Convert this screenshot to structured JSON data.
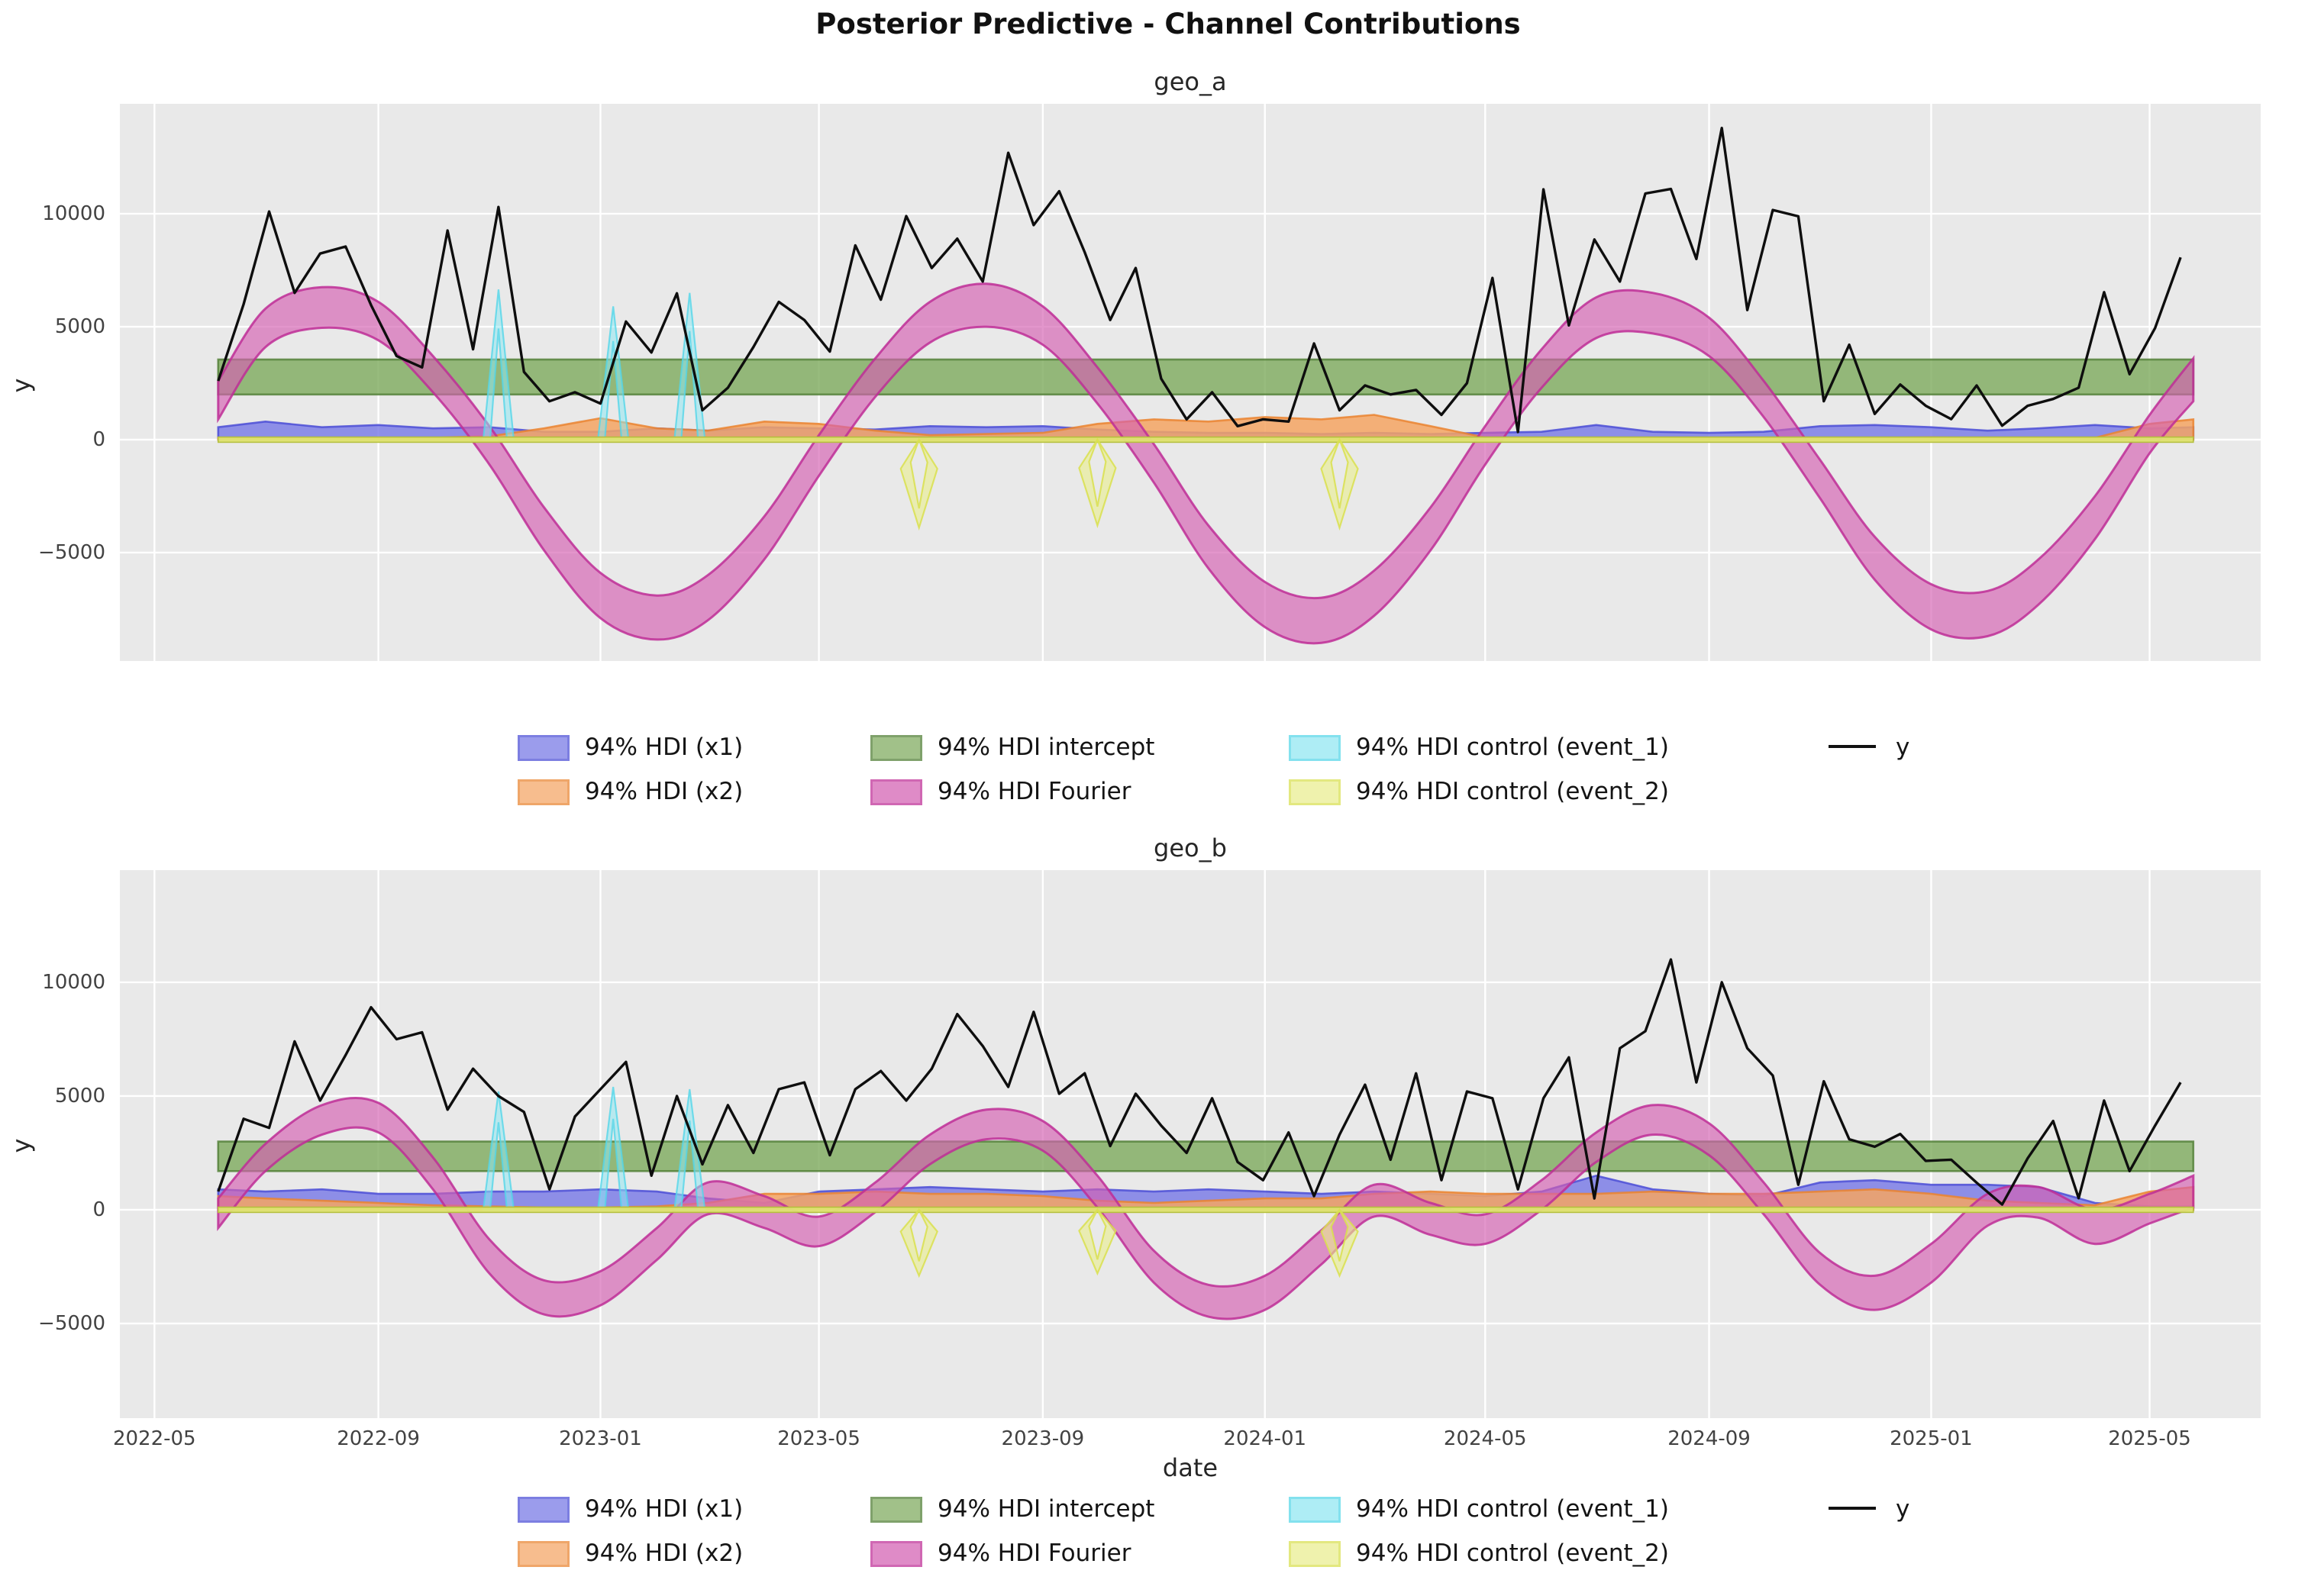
{
  "figure": {
    "suptitle": "Posterior Predictive - Channel Contributions",
    "xlabel": "date",
    "ylabel": "y"
  },
  "colors": {
    "plot_background": "#e9e9e9",
    "grid": "#ffffff",
    "y_line": "#0e0e0e",
    "x1_fill": "#7577e6",
    "x1_edge": "#4b4dd6",
    "x2_fill": "#f4a563",
    "x2_edge": "#ea8430",
    "intercept_fill": "#7daa5c",
    "intercept_edge": "#4f7d33",
    "fourier_fill": "#d45fb2",
    "fourier_edge": "#be2e96",
    "event1_fill": "#8fe7f2",
    "event1_edge": "#54d6e8",
    "event2_fill": "#e9ee8e",
    "event2_edge": "#d9e04e",
    "zero_band_fill": "#dfe573",
    "zero_band_edge": "#b5bf3d"
  },
  "legend": {
    "rows": [
      [
        {
          "key": "x1",
          "label": "94% HDI (x1)",
          "type": "patch"
        },
        {
          "key": "intercept",
          "label": "94% HDI intercept",
          "type": "patch"
        },
        {
          "key": "event1",
          "label": "94% HDI control (event_1)",
          "type": "patch"
        },
        {
          "key": "yline",
          "label": "y",
          "type": "line"
        }
      ],
      [
        {
          "key": "x2",
          "label": "94% HDI (x2)",
          "type": "patch"
        },
        {
          "key": "fourier",
          "label": "94% HDI Fourier",
          "type": "patch"
        },
        {
          "key": "event2",
          "label": "94% HDI control (event_2)",
          "type": "patch"
        }
      ]
    ]
  },
  "chart_data": [
    {
      "type": "line",
      "title": "geo_a",
      "ylabel": "y",
      "ylim": [
        -9800,
        14870
      ],
      "yticks": [
        -5000,
        0,
        5000,
        10000
      ],
      "x_domain": [
        "2022-04-12",
        "2025-07-01"
      ],
      "xticks": [
        "2022-05",
        "2022-09",
        "2023-01",
        "2023-05",
        "2023-09",
        "2024-01",
        "2024-05",
        "2024-09",
        "2025-01",
        "2025-05"
      ],
      "grid": true,
      "intercept_hdi": {
        "lo": 2000,
        "hi": 3550
      },
      "band_dates": [
        "2022-06-05",
        "2022-07-01",
        "2022-08-01",
        "2022-09-01",
        "2022-10-01",
        "2022-11-01",
        "2022-12-01",
        "2023-01-01",
        "2023-02-01",
        "2023-03-01",
        "2023-04-01",
        "2023-05-01",
        "2023-06-01",
        "2023-07-01",
        "2023-08-01",
        "2023-09-01",
        "2023-10-01",
        "2023-11-01",
        "2023-12-01",
        "2024-01-01",
        "2024-02-01",
        "2024-03-01",
        "2024-04-01",
        "2024-05-01",
        "2024-06-01",
        "2024-07-01",
        "2024-08-01",
        "2024-09-01",
        "2024-10-01",
        "2024-11-01",
        "2024-12-01",
        "2025-01-01",
        "2025-02-01",
        "2025-03-01",
        "2025-04-01",
        "2025-05-01",
        "2025-05-25"
      ],
      "fourier_upper": [
        2600,
        5800,
        6750,
        6100,
        3700,
        600,
        -3000,
        -5900,
        -6900,
        -6000,
        -3400,
        200,
        3600,
        6100,
        6900,
        5900,
        3200,
        -200,
        -3800,
        -6300,
        -7000,
        -5800,
        -3000,
        600,
        4000,
        6300,
        6500,
        5400,
        2600,
        -900,
        -4300,
        -6400,
        -6700,
        -5300,
        -2500,
        1100,
        3600
      ],
      "fourier_lower": [
        900,
        4100,
        4950,
        4400,
        2100,
        -1100,
        -4900,
        -7900,
        -8850,
        -8000,
        -5300,
        -1600,
        1900,
        4300,
        5000,
        4200,
        1600,
        -1900,
        -5700,
        -8300,
        -9000,
        -7800,
        -4900,
        -1100,
        2300,
        4500,
        4700,
        3700,
        1000,
        -2600,
        -6200,
        -8400,
        -8700,
        -7300,
        -4400,
        -600,
        1700
      ],
      "x1_upper": [
        550,
        800,
        550,
        650,
        500,
        550,
        350,
        350,
        500,
        400,
        550,
        500,
        450,
        600,
        550,
        600,
        450,
        350,
        300,
        300,
        250,
        300,
        250,
        300,
        350,
        650,
        350,
        300,
        350,
        600,
        650,
        550,
        400,
        500,
        650,
        500,
        550
      ],
      "x2_upper": [
        60,
        60,
        50,
        60,
        80,
        150,
        500,
        950,
        500,
        400,
        800,
        700,
        400,
        200,
        250,
        300,
        700,
        900,
        800,
        1000,
        900,
        1100,
        600,
        100,
        80,
        60,
        60,
        50,
        50,
        60,
        80,
        100,
        80,
        60,
        80,
        700,
        900
      ],
      "event_1": [
        {
          "date": "2022-11-06",
          "hdi_upper": 6650
        },
        {
          "date": "2023-01-08",
          "hdi_upper": 5900
        },
        {
          "date": "2023-02-19",
          "hdi_upper": 6500
        }
      ],
      "event_2": [
        {
          "date": "2023-06-25",
          "hdi_lower": -3900
        },
        {
          "date": "2023-10-01",
          "hdi_lower": -3800
        },
        {
          "date": "2024-02-11",
          "hdi_lower": -3900
        }
      ],
      "y_line": {
        "start": "2022-06-05",
        "step_days": 14,
        "values": [
          2600,
          6000,
          10100,
          6500,
          8240,
          8550,
          5960,
          3700,
          3200,
          9260,
          4000,
          10300,
          3000,
          1700,
          2100,
          1600,
          5230,
          3860,
          6480,
          1300,
          2300,
          4100,
          6100,
          5300,
          3900,
          8600,
          6200,
          9900,
          7600,
          8900,
          7000,
          12700,
          9500,
          11000,
          8300,
          5300,
          7600,
          2700,
          900,
          2100,
          600,
          900,
          800,
          4260,
          1300,
          2400,
          2000,
          2200,
          1100,
          2500,
          7160,
          340,
          11080,
          5060,
          8860,
          7000,
          10900,
          11100,
          8000,
          13800,
          5740,
          10170,
          9890,
          1700,
          4200,
          1140,
          2440,
          1500,
          910,
          2400,
          620,
          1500,
          1800,
          2300,
          6530,
          2900,
          4940,
          8070
        ]
      }
    },
    {
      "type": "line",
      "title": "geo_b",
      "ylabel": "y",
      "ylim": [
        -9160,
        14930
      ],
      "yticks": [
        -5000,
        0,
        5000,
        10000
      ],
      "x_domain": [
        "2022-04-12",
        "2025-07-01"
      ],
      "xticks": [
        "2022-05",
        "2022-09",
        "2023-01",
        "2023-05",
        "2023-09",
        "2024-01",
        "2024-05",
        "2024-09",
        "2025-01",
        "2025-05"
      ],
      "grid": true,
      "intercept_hdi": {
        "lo": 1700,
        "hi": 3000
      },
      "band_dates": [
        "2022-06-05",
        "2022-07-01",
        "2022-08-01",
        "2022-09-01",
        "2022-10-01",
        "2022-11-01",
        "2022-12-01",
        "2023-01-01",
        "2023-02-01",
        "2023-03-01",
        "2023-04-01",
        "2023-05-01",
        "2023-06-01",
        "2023-07-01",
        "2023-08-01",
        "2023-09-01",
        "2023-10-01",
        "2023-11-01",
        "2023-12-01",
        "2024-01-01",
        "2024-02-01",
        "2024-03-01",
        "2024-04-01",
        "2024-05-01",
        "2024-06-01",
        "2024-07-01",
        "2024-08-01",
        "2024-09-01",
        "2024-10-01",
        "2024-11-01",
        "2024-12-01",
        "2025-01-01",
        "2025-02-01",
        "2025-03-01",
        "2025-04-01",
        "2025-05-01",
        "2025-05-25"
      ],
      "fourier_upper": [
        500,
        2900,
        4600,
        4700,
        2300,
        -1300,
        -3100,
        -2700,
        -800,
        1200,
        600,
        -300,
        1200,
        3300,
        4400,
        3900,
        1500,
        -1800,
        -3300,
        -2900,
        -900,
        1100,
        300,
        -200,
        1300,
        3400,
        4600,
        3800,
        1200,
        -1900,
        -2900,
        -1500,
        700,
        1000,
        0,
        700,
        1500
      ],
      "fourier_lower": [
        -800,
        1700,
        3300,
        3400,
        900,
        -2800,
        -4600,
        -4200,
        -2200,
        -200,
        -800,
        -1600,
        -100,
        2000,
        3100,
        2600,
        100,
        -3200,
        -4700,
        -4400,
        -2400,
        -300,
        -1100,
        -1500,
        0,
        2100,
        3300,
        2400,
        -200,
        -3300,
        -4400,
        -3200,
        -700,
        -350,
        -1500,
        -600,
        100
      ],
      "x1_upper": [
        900,
        800,
        900,
        700,
        700,
        800,
        800,
        900,
        800,
        500,
        300,
        800,
        900,
        1000,
        900,
        800,
        900,
        800,
        900,
        800,
        700,
        800,
        700,
        600,
        800,
        1500,
        900,
        700,
        600,
        1200,
        1300,
        1100,
        1100,
        1000,
        300,
        150,
        150
      ],
      "x2_upper": [
        600,
        500,
        400,
        300,
        200,
        150,
        100,
        100,
        150,
        300,
        700,
        700,
        800,
        700,
        700,
        600,
        400,
        300,
        400,
        500,
        500,
        700,
        800,
        700,
        700,
        700,
        800,
        700,
        700,
        800,
        900,
        700,
        400,
        300,
        200,
        800,
        1000
      ],
      "event_1": [
        {
          "date": "2022-11-06",
          "hdi_upper": 5200
        },
        {
          "date": "2023-01-08",
          "hdi_upper": 5400
        },
        {
          "date": "2023-02-19",
          "hdi_upper": 5300
        }
      ],
      "event_2": [
        {
          "date": "2023-06-25",
          "hdi_lower": -2900
        },
        {
          "date": "2023-10-01",
          "hdi_lower": -2800
        },
        {
          "date": "2024-02-11",
          "hdi_lower": -2900
        }
      ],
      "y_line": {
        "start": "2022-06-05",
        "step_days": 14,
        "values": [
          800,
          4000,
          3600,
          7400,
          4800,
          6800,
          8900,
          7500,
          7800,
          4400,
          6200,
          5000,
          4300,
          900,
          4100,
          5300,
          6500,
          1500,
          5000,
          2000,
          4600,
          2500,
          5300,
          5600,
          2400,
          5300,
          6100,
          4800,
          6200,
          8600,
          7200,
          5400,
          8700,
          5100,
          6000,
          2800,
          5100,
          3700,
          2500,
          4900,
          2100,
          1300,
          3400,
          600,
          3300,
          5500,
          2200,
          6000,
          1300,
          5200,
          4900,
          900,
          4900,
          6700,
          500,
          7100,
          7850,
          11000,
          5600,
          10000,
          7100,
          5900,
          1100,
          5650,
          3100,
          2770,
          3330,
          2150,
          2200,
          1190,
          230,
          2260,
          3900,
          510,
          4800,
          1700,
          3700,
          5600
        ]
      }
    }
  ]
}
